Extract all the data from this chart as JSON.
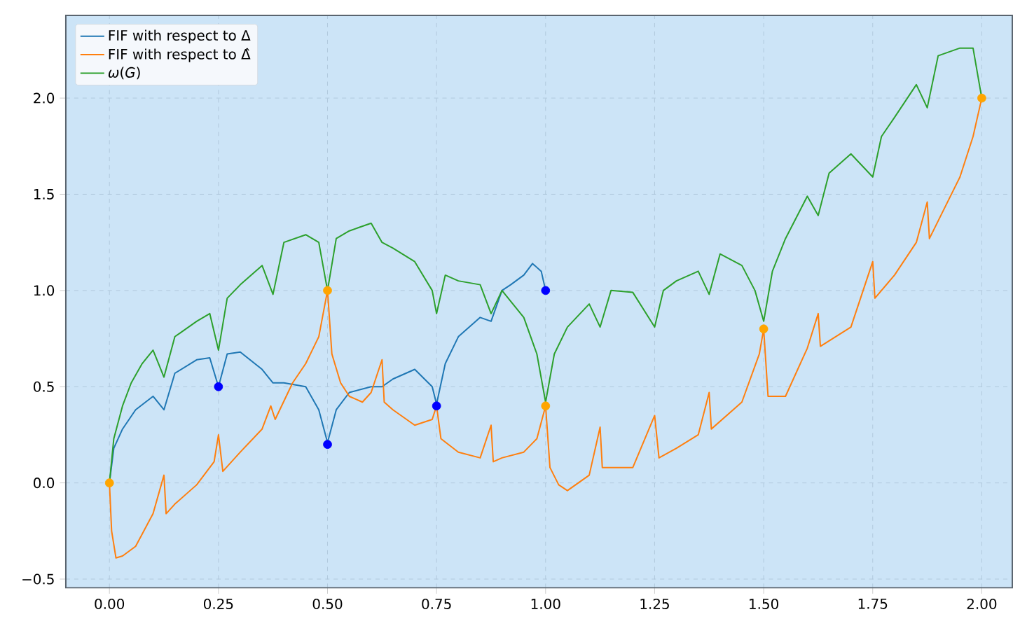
{
  "chart_data": {
    "type": "line",
    "xlim": [
      -0.1,
      2.07
    ],
    "ylim": [
      -0.545,
      2.43
    ],
    "xticks": [
      {
        "value": 0,
        "label": "0.00"
      },
      {
        "value": 0.25,
        "label": "0.25"
      },
      {
        "value": 0.5,
        "label": "0.50"
      },
      {
        "value": 0.75,
        "label": "0.75"
      },
      {
        "value": 1,
        "label": "1.00"
      },
      {
        "value": 1.25,
        "label": "1.25"
      },
      {
        "value": 1.5,
        "label": "1.50"
      },
      {
        "value": 1.75,
        "label": "1.75"
      },
      {
        "value": 2,
        "label": "2.00"
      }
    ],
    "yticks": [
      {
        "value": -0.5,
        "label": "−0.5"
      },
      {
        "value": 0,
        "label": "0.0"
      },
      {
        "value": 0.5,
        "label": "0.5"
      },
      {
        "value": 1,
        "label": "1.0"
      },
      {
        "value": 1.5,
        "label": "1.5"
      },
      {
        "value": 2,
        "label": "2.0"
      }
    ],
    "grid": true,
    "legend": "top left",
    "series": [
      {
        "name": "FIF with respect to Δ",
        "marker": "none",
        "color": "#1f77b4",
        "x": [
          0,
          0.01,
          0.03,
          0.06,
          0.1,
          0.125,
          0.15,
          0.2,
          0.23,
          0.25,
          0.27,
          0.3,
          0.35,
          0.375,
          0.4,
          0.45,
          0.48,
          0.5,
          0.52,
          0.55,
          0.6,
          0.625,
          0.65,
          0.7,
          0.74,
          0.75,
          0.77,
          0.8,
          0.85,
          0.875,
          0.9,
          0.92,
          0.95,
          0.97,
          0.99,
          1.0
        ],
        "values": [
          0,
          0.18,
          0.28,
          0.38,
          0.45,
          0.38,
          0.57,
          0.64,
          0.65,
          0.5,
          0.67,
          0.68,
          0.59,
          0.52,
          0.52,
          0.5,
          0.38,
          0.21,
          0.38,
          0.47,
          0.5,
          0.5,
          0.54,
          0.59,
          0.5,
          0.41,
          0.62,
          0.76,
          0.86,
          0.84,
          1.0,
          1.03,
          1.08,
          1.14,
          1.1,
          1.0
        ]
      },
      {
        "name": "FIF with respect to Δ̂",
        "marker": "none",
        "color": "#ff7f0e",
        "x": [
          0,
          0.005,
          0.015,
          0.03,
          0.06,
          0.1,
          0.125,
          0.13,
          0.15,
          0.2,
          0.24,
          0.25,
          0.26,
          0.3,
          0.35,
          0.37,
          0.38,
          0.42,
          0.45,
          0.48,
          0.5,
          0.51,
          0.53,
          0.55,
          0.58,
          0.6,
          0.625,
          0.63,
          0.65,
          0.7,
          0.74,
          0.75,
          0.76,
          0.8,
          0.85,
          0.875,
          0.88,
          0.9,
          0.95,
          0.98,
          1.0,
          1.01,
          1.03,
          1.05,
          1.1,
          1.125,
          1.13,
          1.2,
          1.25,
          1.26,
          1.3,
          1.35,
          1.375,
          1.38,
          1.45,
          1.49,
          1.5,
          1.51,
          1.55,
          1.6,
          1.625,
          1.63,
          1.7,
          1.75,
          1.755,
          1.8,
          1.85,
          1.875,
          1.88,
          1.95,
          1.98,
          2.0
        ],
        "values": [
          0,
          -0.25,
          -0.39,
          -0.38,
          -0.33,
          -0.16,
          0.04,
          -0.16,
          -0.11,
          -0.01,
          0.11,
          0.25,
          0.06,
          0.16,
          0.28,
          0.4,
          0.33,
          0.52,
          0.62,
          0.76,
          1.0,
          0.67,
          0.52,
          0.45,
          0.42,
          0.47,
          0.64,
          0.42,
          0.38,
          0.3,
          0.33,
          0.4,
          0.23,
          0.16,
          0.13,
          0.3,
          0.11,
          0.13,
          0.16,
          0.23,
          0.4,
          0.08,
          -0.01,
          -0.04,
          0.04,
          0.29,
          0.08,
          0.08,
          0.35,
          0.13,
          0.18,
          0.25,
          0.47,
          0.28,
          0.42,
          0.67,
          0.8,
          0.45,
          0.45,
          0.7,
          0.88,
          0.71,
          0.81,
          1.15,
          0.96,
          1.08,
          1.25,
          1.46,
          1.27,
          1.59,
          1.8,
          2.0
        ]
      },
      {
        "name": "*ω*(*G*)",
        "marker": "none",
        "color": "#2ca02c",
        "x": [
          0,
          0.01,
          0.03,
          0.05,
          0.075,
          0.1,
          0.125,
          0.15,
          0.2,
          0.23,
          0.25,
          0.27,
          0.3,
          0.35,
          0.375,
          0.4,
          0.45,
          0.48,
          0.5,
          0.52,
          0.55,
          0.6,
          0.625,
          0.65,
          0.7,
          0.74,
          0.75,
          0.77,
          0.8,
          0.85,
          0.875,
          0.9,
          0.95,
          0.98,
          1.0,
          1.02,
          1.05,
          1.1,
          1.125,
          1.15,
          1.2,
          1.25,
          1.27,
          1.3,
          1.35,
          1.375,
          1.4,
          1.45,
          1.48,
          1.5,
          1.52,
          1.55,
          1.6,
          1.625,
          1.65,
          1.7,
          1.75,
          1.77,
          1.8,
          1.85,
          1.875,
          1.9,
          1.95,
          1.98,
          2.0
        ],
        "values": [
          0,
          0.23,
          0.4,
          0.52,
          0.62,
          0.69,
          0.55,
          0.76,
          0.84,
          0.88,
          0.69,
          0.96,
          1.03,
          1.13,
          0.98,
          1.25,
          1.29,
          1.25,
          1.0,
          1.27,
          1.31,
          1.35,
          1.25,
          1.22,
          1.15,
          1.0,
          0.88,
          1.08,
          1.05,
          1.03,
          0.88,
          1.0,
          0.86,
          0.67,
          0.42,
          0.67,
          0.81,
          0.93,
          0.81,
          1.0,
          0.99,
          0.81,
          1.0,
          1.05,
          1.1,
          0.98,
          1.19,
          1.13,
          1.0,
          0.84,
          1.1,
          1.27,
          1.49,
          1.39,
          1.61,
          1.71,
          1.59,
          1.8,
          1.9,
          2.07,
          1.95,
          2.22,
          2.26,
          2.26,
          2.0
        ]
      },
      {
        "type": "scatter",
        "marker": "circle",
        "color": "#0000ff",
        "x": [
          0.25,
          0.5,
          0.75,
          1.0
        ],
        "values": [
          0.5,
          0.2,
          0.4,
          1.0
        ]
      },
      {
        "type": "scatter",
        "marker": "circle",
        "color": "#ffa500",
        "x": [
          0,
          0.5,
          1.0,
          1.5,
          2.0
        ],
        "values": [
          0,
          1.0,
          0.4,
          0.8,
          2.0
        ]
      }
    ]
  }
}
